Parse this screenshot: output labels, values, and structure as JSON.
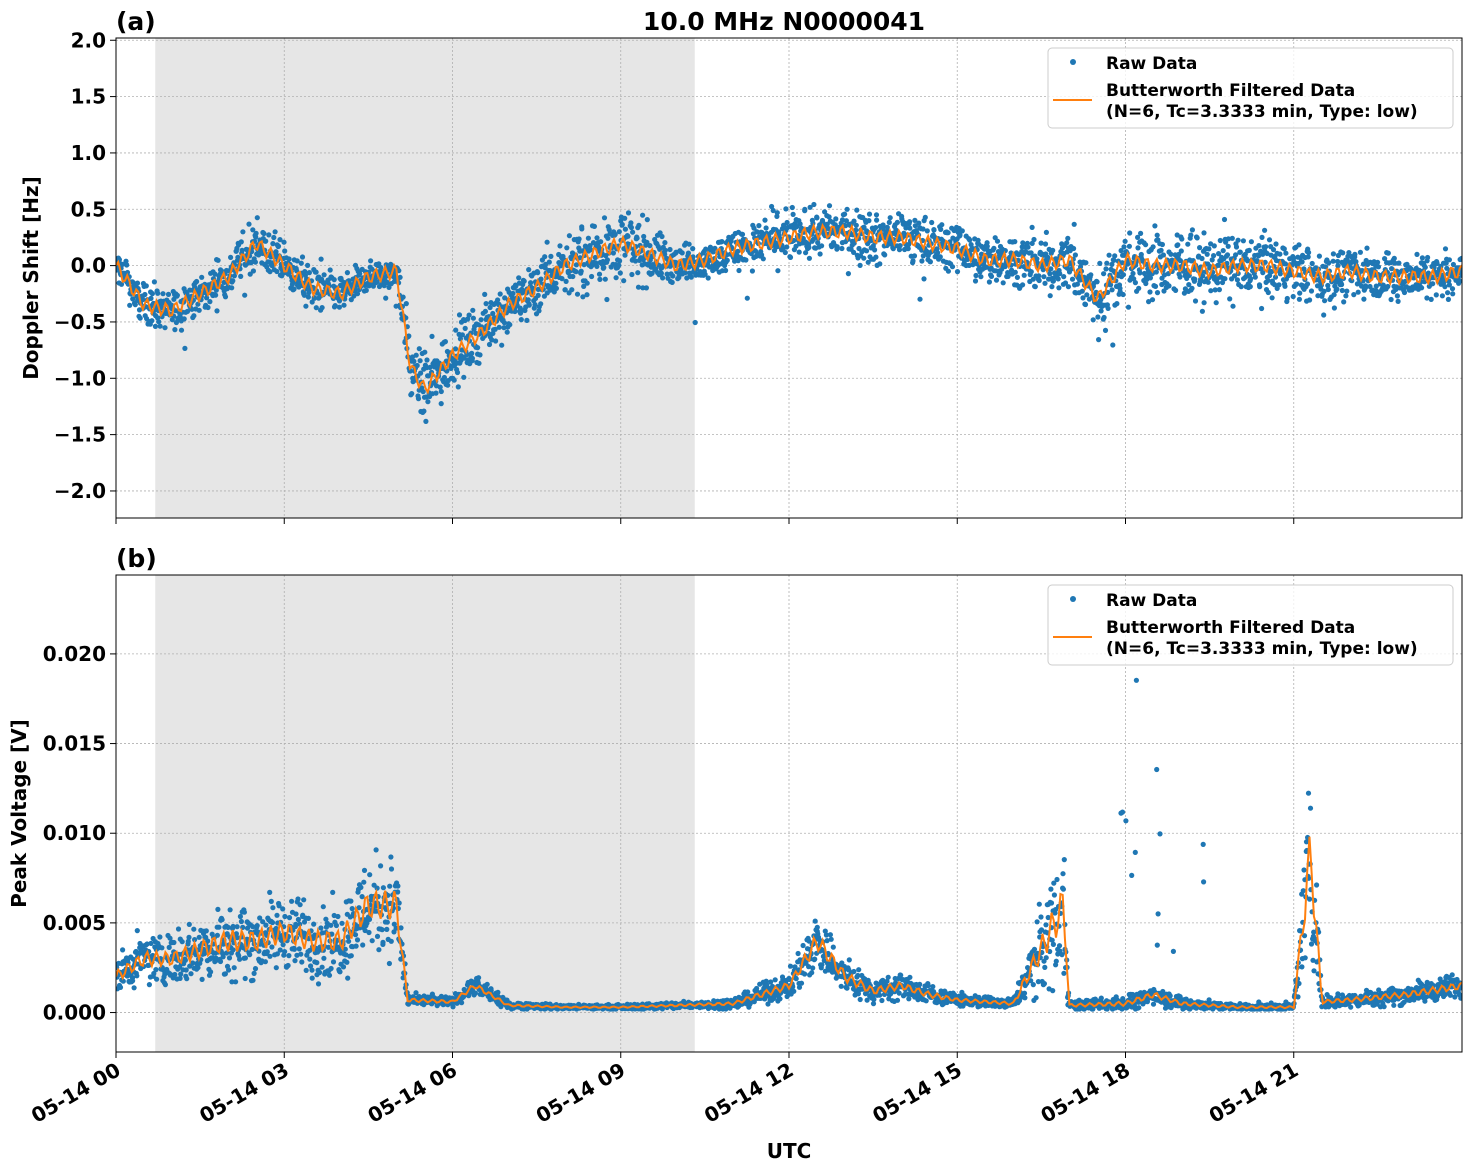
{
  "title": "10.0 MHz N0000041",
  "chart_data": [
    {
      "type": "scatter",
      "panel_label": "(a)",
      "ylabel": "Doppler Shift [Hz]",
      "xlabel": "",
      "x_unit": "hours UTC since 05-14 00",
      "xlim": [
        0,
        24
      ],
      "ylim": [
        -2.24,
        2.02
      ],
      "yticks": [
        -2.0,
        -1.5,
        -1.0,
        -0.5,
        0.0,
        0.5,
        1.0,
        1.5,
        2.0
      ],
      "ytick_labels": [
        "−2.0",
        "−1.5",
        "−1.0",
        "−0.5",
        "0.0",
        "0.5",
        "1.0",
        "1.5",
        "2.0"
      ],
      "grid": true,
      "shaded_region_hours": [
        0.7,
        10.32
      ],
      "legend": {
        "placement": "top-right",
        "entries": [
          "Raw Data",
          "Butterworth Filtered Data\n(N=6, Tc=3.3333 min, Type: low)"
        ]
      },
      "series": [
        {
          "name": "Butterworth Filtered Data (N=6, Tc=3.3333 min, Type: low)",
          "kind": "line",
          "color": "#ff7f0e",
          "x": [
            0,
            0.5,
            1,
            1.5,
            2,
            2.5,
            3,
            3.5,
            4,
            4.5,
            5,
            5.25,
            5.5,
            6,
            6.5,
            7,
            7.5,
            8,
            8.5,
            9,
            9.5,
            10,
            10.5,
            11,
            11.5,
            12,
            12.5,
            13,
            13.5,
            14,
            14.5,
            15,
            15.5,
            16,
            16.5,
            17,
            17.5,
            18,
            18.5,
            19,
            19.5,
            20,
            20.5,
            21,
            21.5,
            22,
            22.5,
            23,
            23.5,
            24
          ],
          "y": [
            0.0,
            -0.35,
            -0.4,
            -0.25,
            -0.1,
            0.2,
            0.0,
            -0.2,
            -0.25,
            -0.1,
            -0.05,
            -0.9,
            -1.1,
            -0.8,
            -0.6,
            -0.35,
            -0.2,
            0.0,
            0.1,
            0.2,
            0.1,
            0.0,
            0.05,
            0.15,
            0.2,
            0.25,
            0.3,
            0.3,
            0.25,
            0.25,
            0.2,
            0.15,
            0.05,
            0.05,
            0.0,
            0.05,
            -0.3,
            0.05,
            0.0,
            0.0,
            -0.05,
            0.0,
            0.0,
            -0.05,
            -0.1,
            -0.05,
            -0.1,
            -0.1,
            -0.1,
            -0.05
          ]
        },
        {
          "name": "Raw Data",
          "kind": "points",
          "color": "#1f77b4",
          "spread": [
            0.2,
            0.25,
            0.25,
            0.25,
            0.3,
            0.3,
            0.3,
            0.3,
            0.25,
            0.2,
            0.2,
            0.4,
            0.5,
            0.4,
            0.35,
            0.35,
            0.35,
            0.35,
            0.4,
            0.45,
            0.4,
            0.25,
            0.2,
            0.25,
            0.3,
            0.3,
            0.3,
            0.3,
            0.35,
            0.35,
            0.35,
            0.3,
            0.3,
            0.35,
            0.35,
            0.4,
            0.45,
            0.4,
            0.45,
            0.45,
            0.45,
            0.4,
            0.4,
            0.35,
            0.35,
            0.35,
            0.3,
            0.3,
            0.25,
            0.25
          ]
        }
      ]
    },
    {
      "type": "scatter",
      "panel_label": "(b)",
      "ylabel": "Peak Voltage [V]",
      "xlabel": "UTC",
      "xlim": [
        0,
        24
      ],
      "ylim": [
        -0.0022,
        0.0244
      ],
      "yticks": [
        0,
        0.005,
        0.01,
        0.015,
        0.02
      ],
      "ytick_labels": [
        "0.000",
        "0.005",
        "0.010",
        "0.015",
        "0.020"
      ],
      "xticks": [
        0,
        3,
        6,
        9,
        12,
        15,
        18,
        21
      ],
      "xtick_labels": [
        "05-14 00",
        "05-14 03",
        "05-14 06",
        "05-14 09",
        "05-14 12",
        "05-14 15",
        "05-14 18",
        "05-14 21"
      ],
      "grid": true,
      "shaded_region_hours": [
        0.7,
        10.32
      ],
      "legend": {
        "placement": "top-right",
        "entries": [
          "Raw Data",
          "Butterworth Filtered Data\n(N=6, Tc=3.3333 min, Type: low)"
        ]
      },
      "series": [
        {
          "name": "Butterworth Filtered Data (N=6, Tc=3.3333 min, Type: low)",
          "kind": "line",
          "color": "#ff7f0e",
          "x": [
            0,
            0.5,
            1,
            1.5,
            2,
            2.5,
            3,
            3.5,
            4,
            4.5,
            5,
            5.2,
            6,
            6.4,
            7,
            8,
            9,
            10,
            11,
            11.5,
            12,
            12.5,
            13,
            13.5,
            14,
            14.5,
            15,
            16,
            16.9,
            17,
            18,
            18.5,
            19,
            20,
            21,
            21.3,
            21.5,
            22,
            23,
            24
          ],
          "y": [
            0.002,
            0.003,
            0.003,
            0.0035,
            0.004,
            0.004,
            0.0045,
            0.004,
            0.004,
            0.006,
            0.006,
            0.0007,
            0.0006,
            0.0015,
            0.0004,
            0.0003,
            0.0003,
            0.0004,
            0.0005,
            0.001,
            0.0015,
            0.004,
            0.002,
            0.0012,
            0.0015,
            0.001,
            0.0007,
            0.0005,
            0.006,
            0.0004,
            0.0005,
            0.001,
            0.0005,
            0.0003,
            0.0003,
            0.009,
            0.0006,
            0.0007,
            0.001,
            0.0015
          ]
        },
        {
          "name": "Raw Data",
          "kind": "points",
          "color": "#1f77b4",
          "spread": [
            0.0015,
            0.002,
            0.002,
            0.0025,
            0.003,
            0.003,
            0.003,
            0.003,
            0.003,
            0.004,
            0.004,
            0.0005,
            0.0004,
            0.0008,
            0.0003,
            0.0002,
            0.0002,
            0.0003,
            0.0004,
            0.0008,
            0.001,
            0.0025,
            0.0015,
            0.001,
            0.001,
            0.0008,
            0.0005,
            0.0004,
            0.006,
            0.0004,
            0.0006,
            0.0008,
            0.0005,
            0.0003,
            0.0003,
            0.008,
            0.0005,
            0.0006,
            0.0008,
            0.001
          ]
        }
      ]
    }
  ]
}
